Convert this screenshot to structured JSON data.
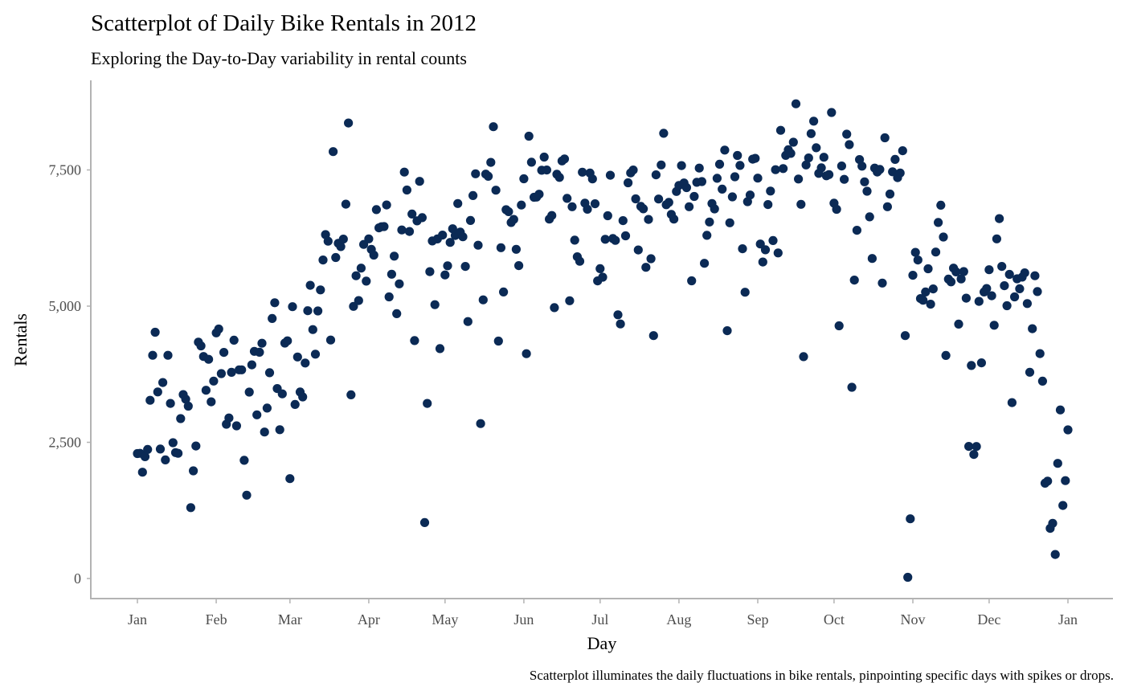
{
  "chart_data": {
    "type": "scatter",
    "title": "Scatterplot of Daily Bike Rentals in 2012",
    "subtitle": "Exploring the Day-to-Day variability in rental counts",
    "xlabel": "Day",
    "ylabel": "Rentals",
    "caption": "Scatterplot illuminates the daily fluctuations in bike rentals, pinpointing specific days with spikes or drops.",
    "x_range": [
      "2012-01-01",
      "2013-01-01"
    ],
    "ylim": [
      0,
      8700
    ],
    "x_tick_labels": [
      "Jan",
      "Feb",
      "Mar",
      "Apr",
      "May",
      "Jun",
      "Jul",
      "Aug",
      "Sep",
      "Oct",
      "Nov",
      "Dec",
      "Jan"
    ],
    "x_tick_dates": [
      "2012-01-01",
      "2012-02-01",
      "2012-03-01",
      "2012-04-01",
      "2012-05-01",
      "2012-06-01",
      "2012-07-01",
      "2012-08-01",
      "2012-09-01",
      "2012-10-01",
      "2012-11-01",
      "2012-12-01",
      "2013-01-01"
    ],
    "y_ticks": [
      0,
      2500,
      5000,
      7500
    ],
    "y_tick_labels": [
      "0",
      "2,500",
      "5,000",
      "7,500"
    ],
    "grid": false,
    "point_color": "#0b2a55",
    "year": 2012,
    "series": [
      {
        "values": [
          2294,
          2298,
          1951,
          2236,
          2368,
          3272,
          4098,
          4521,
          3425,
          2376,
          3598,
          2177,
          4097,
          3214,
          2493,
          2311,
          2298,
          2935,
          3376,
          3292,
          3163,
          1301,
          1977,
          2432,
          4339,
          4270,
          4075,
          3456,
          4023,
          3243,
          3624,
          4509,
          4579,
          3761,
          4151,
          2832,
          2947,
          3784,
          4375,
          2802,
          3830,
          3831,
          2169,
          1529,
          3422,
          3922,
          4169,
          3005,
          4154,
          4318,
          2689,
          3129,
          3777,
          4773,
          5062,
          3487,
          2732,
          3389,
          4322,
          4363,
          1834,
          4990,
          3194,
          4066,
          3423,
          3333,
          3956,
          4916,
          5382,
          4569,
          4118,
          4911,
          5298,
          5847,
          6312,
          6192,
          4378,
          7836,
          5892,
          6153,
          6093,
          6230,
          6871,
          8362,
          3372,
          4996,
          5558,
          5102,
          5698,
          6133,
          5459,
          6235,
          6041,
          5936,
          6772,
          6436,
          6457,
          6460,
          6857,
          5169,
          5585,
          5918,
          4862,
          5409,
          6398,
          7460,
          7132,
          6370,
          6691,
          4367,
          6565,
          7290,
          6624,
          1027,
          3214,
          5633,
          6196,
          5026,
          6233,
          4220,
          6304,
          5572,
          5740,
          6169,
          6421,
          6296,
          6883,
          6359,
          6273,
          5728,
          4717,
          6572,
          7030,
          7429,
          6118,
          2843,
          5115,
          7424,
          7384,
          7639,
          8294,
          7129,
          4359,
          6073,
          5260,
          6770,
          6734,
          6536,
          6591,
          6043,
          5743,
          6855,
          7338,
          4127,
          8120,
          7641,
          6998,
          7001,
          7055,
          7494,
          7736,
          7498,
          6598,
          6664,
          4972,
          7421,
          7363,
          7665,
          7702,
          6978,
          5099,
          6825,
          6211,
          5905,
          5823,
          7458,
          6891,
          6779,
          7442,
          7335,
          6879,
          5463,
          5687,
          5531,
          6227,
          6660,
          7403,
          6241,
          6207,
          4840,
          4672,
          6569,
          6290,
          7264,
          7446,
          7499,
          6969,
          6031,
          6830,
          6786,
          5713,
          6591,
          5870,
          4459,
          7410,
          6966,
          7592,
          8173,
          6861,
          6904,
          6685,
          6597,
          7105,
          7216,
          7580,
          7261,
          7175,
          6824,
          5464,
          7013,
          7273,
          7534,
          7286,
          5786,
          6299,
          6544,
          6883,
          6784,
          7347,
          7605,
          7148,
          7865,
          4549,
          6530,
          7006,
          7375,
          7765,
          7582,
          6053,
          5255,
          6917,
          7040,
          7697,
          7713,
          7350,
          6140,
          5810,
          6034,
          6864,
          7112,
          6203,
          7504,
          5976,
          8227,
          7525,
          7767,
          7870,
          7804,
          8009,
          8714,
          7333,
          6869,
          4073,
          7591,
          7720,
          8167,
          8395,
          7907,
          7436,
          7538,
          7733,
          7393,
          7415,
          8555,
          6889,
          6778,
          4639,
          7572,
          7328,
          8156,
          7965,
          3510,
          5478,
          6392,
          7691,
          7570,
          7282,
          7109,
          6639,
          5875,
          7534,
          7461,
          7509,
          5424,
          8090,
          6824,
          7058,
          7466,
          7693,
          7359,
          7444,
          7852,
          4459,
          22,
          1096,
          5566,
          5986,
          5847,
          5138,
          5107,
          5259,
          5686,
          5035,
          5315,
          5992,
          6536,
          6852,
          6269,
          4094,
          5495,
          5445,
          5698,
          5629,
          4669,
          5499,
          5634,
          5146,
          2425,
          3910,
          2277,
          2424,
          5087,
          3959,
          5260,
          5323,
          5668,
          5191,
          4649,
          6234,
          6606,
          5729,
          5375,
          5008,
          5582,
          3228,
          5170,
          5501,
          5319,
          5532,
          5611,
          5047,
          3786,
          4585,
          5557,
          5267,
          4128,
          3623,
          1749,
          1787,
          920,
          1013,
          441,
          2114,
          3095,
          1341,
          1796,
          2729
        ]
      }
    ]
  }
}
